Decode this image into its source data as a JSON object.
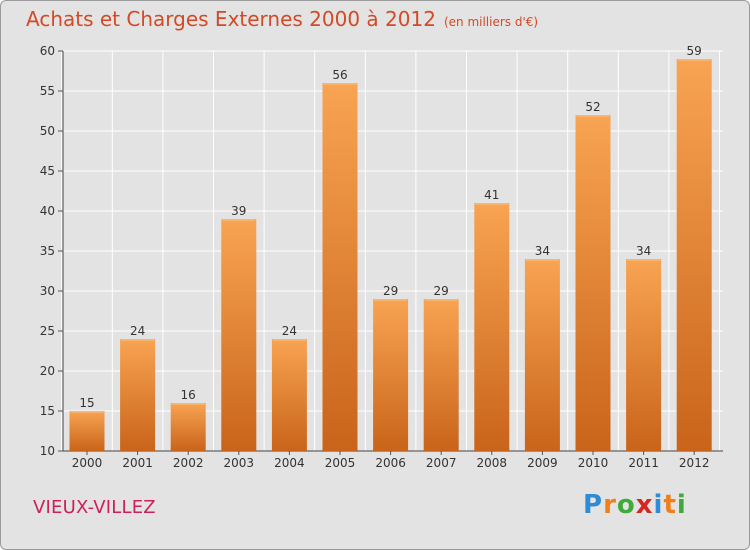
{
  "header": {
    "title": "Achats et Charges Externes 2000 à 2012",
    "unit": "(en milliers d'€)"
  },
  "footer": {
    "town": "VIEUX-VILLEZ",
    "brand_letters": [
      "P",
      "r",
      "o",
      "x",
      "i",
      "t",
      "i"
    ],
    "brand_colors": [
      "#2e8bd6",
      "#f07f1a",
      "#3faa3a",
      "#d7261e",
      "#2e8bd6",
      "#f07f1a",
      "#3faa3a"
    ]
  },
  "colors": {
    "title": "#d24a26",
    "bar_top": "#f8a452",
    "bar_bottom": "#c9641a",
    "background": "#e3e3e3",
    "grid": "#ffffff"
  },
  "chart_data": {
    "type": "bar",
    "categories": [
      "2000",
      "2001",
      "2002",
      "2003",
      "2004",
      "2005",
      "2006",
      "2007",
      "2008",
      "2009",
      "2010",
      "2011",
      "2012"
    ],
    "values": [
      15,
      24,
      16,
      39,
      24,
      56,
      29,
      29,
      41,
      34,
      52,
      34,
      59
    ],
    "yticks": [
      10,
      15,
      20,
      25,
      30,
      35,
      40,
      45,
      50,
      55,
      60
    ],
    "ylim": [
      10,
      60
    ],
    "grid": true,
    "legend": "none"
  }
}
